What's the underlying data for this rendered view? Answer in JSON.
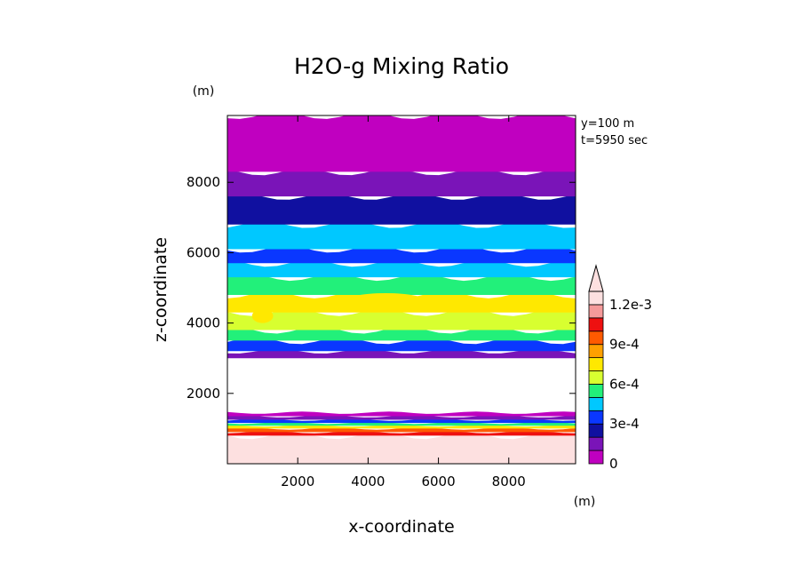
{
  "chart_data": {
    "type": "heatmap",
    "title": "H2O-g Mixing Ratio",
    "xlabel": "x-coordinate",
    "ylabel": "z-coordinate",
    "x_unit": "(m)",
    "y_unit": "(m)",
    "info_lines": [
      "y=100 m",
      "t=5950 sec"
    ],
    "xlim": [
      0,
      9900
    ],
    "ylim": [
      0,
      9900
    ],
    "x_ticks": [
      2000,
      4000,
      6000,
      8000
    ],
    "y_ticks": [
      2000,
      4000,
      6000,
      8000
    ],
    "colorbar": {
      "min": 0,
      "max": 0.0013,
      "labels": [
        {
          "value": 0,
          "text": "0"
        },
        {
          "value": 0.0003,
          "text": "3e-4"
        },
        {
          "value": 0.0006,
          "text": "6e-4"
        },
        {
          "value": 0.0009,
          "text": "9e-4"
        },
        {
          "value": 0.0012,
          "text": "1.2e-3"
        }
      ],
      "levels": [
        {
          "lo": 0.0,
          "hi": 0.0001,
          "color": "#c000c0"
        },
        {
          "lo": 0.0001,
          "hi": 0.0002,
          "color": "#7a14b8"
        },
        {
          "lo": 0.0002,
          "hi": 0.0003,
          "color": "#1010a0"
        },
        {
          "lo": 0.0003,
          "hi": 0.0004,
          "color": "#0a37ff"
        },
        {
          "lo": 0.0004,
          "hi": 0.0005,
          "color": "#00c8ff"
        },
        {
          "lo": 0.0005,
          "hi": 0.0006,
          "color": "#22f07a"
        },
        {
          "lo": 0.0006,
          "hi": 0.0007,
          "color": "#d8ff30"
        },
        {
          "lo": 0.0007,
          "hi": 0.0008,
          "color": "#ffe800"
        },
        {
          "lo": 0.0008,
          "hi": 0.0009,
          "color": "#ffa000"
        },
        {
          "lo": 0.0009,
          "hi": 0.001,
          "color": "#ff5a00"
        },
        {
          "lo": 0.001,
          "hi": 0.0011,
          "color": "#ee1010"
        },
        {
          "lo": 0.0011,
          "hi": 0.0012,
          "color": "#f59a9a"
        },
        {
          "lo": 0.0012,
          "hi": 0.0013,
          "color": "#fde0e0"
        }
      ]
    },
    "bands": [
      {
        "z_bottom": 0,
        "z_top": 800,
        "level": 12
      },
      {
        "z_bottom": 800,
        "z_top": 900,
        "level": 10
      },
      {
        "z_bottom": 900,
        "z_top": 1000,
        "level": 9
      },
      {
        "z_bottom": 1000,
        "z_top": 1080,
        "level": 7
      },
      {
        "z_bottom": 1080,
        "z_top": 1160,
        "level": 5
      },
      {
        "z_bottom": 1160,
        "z_top": 1250,
        "level": 3
      },
      {
        "z_bottom": 1250,
        "z_top": 1350,
        "level": 1
      },
      {
        "z_bottom": 1350,
        "z_top": 1450,
        "level": 0
      },
      {
        "z_bottom": 3000,
        "z_top": 3200,
        "level": 1
      },
      {
        "z_bottom": 3200,
        "z_top": 3500,
        "level": 3
      },
      {
        "z_bottom": 3500,
        "z_top": 3800,
        "level": 5
      },
      {
        "z_bottom": 3800,
        "z_top": 4300,
        "level": 6
      },
      {
        "z_bottom": 4300,
        "z_top": 4800,
        "level": 7
      },
      {
        "z_bottom": 4800,
        "z_top": 5300,
        "level": 5
      },
      {
        "z_bottom": 5300,
        "z_top": 5700,
        "level": 4
      },
      {
        "z_bottom": 5700,
        "z_top": 6100,
        "level": 3
      },
      {
        "z_bottom": 6100,
        "z_top": 6800,
        "level": 4
      },
      {
        "z_bottom": 6800,
        "z_top": 7600,
        "level": 2
      },
      {
        "z_bottom": 7600,
        "z_top": 8300,
        "level": 1
      },
      {
        "z_bottom": 8300,
        "z_top": 9900,
        "level": 0
      }
    ],
    "cores": [
      {
        "x": 4500,
        "z": 4600,
        "rx": 1200,
        "rz": 250,
        "level": 7
      },
      {
        "x": 1000,
        "z": 4200,
        "rx": 300,
        "rz": 200,
        "level": 7
      }
    ]
  }
}
